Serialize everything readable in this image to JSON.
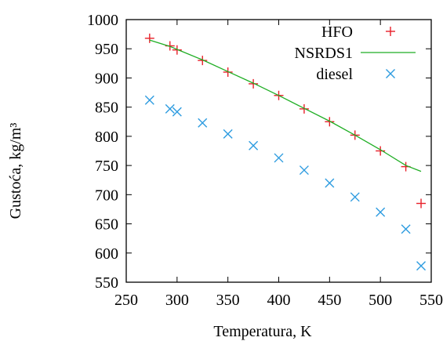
{
  "chart_data": {
    "type": "scatter",
    "xlabel": "Temperatura, K",
    "ylabel": "Gustoća, kg/m³",
    "xlim": [
      250,
      550
    ],
    "ylim": [
      550,
      1000
    ],
    "xticks": [
      250,
      300,
      350,
      400,
      450,
      500,
      550
    ],
    "yticks": [
      550,
      600,
      650,
      700,
      750,
      800,
      850,
      900,
      950,
      1000
    ],
    "grid": false,
    "legend_position": "top-right",
    "series": [
      {
        "name": "HFO",
        "kind": "scatter",
        "marker": "plus",
        "color": "#e8202a",
        "points": [
          [
            273,
            968
          ],
          [
            293,
            955
          ],
          [
            300,
            948
          ],
          [
            325,
            930
          ],
          [
            350,
            910
          ],
          [
            375,
            890
          ],
          [
            400,
            870
          ],
          [
            425,
            847
          ],
          [
            450,
            825
          ],
          [
            475,
            802
          ],
          [
            500,
            775
          ],
          [
            525,
            748
          ],
          [
            540,
            685
          ]
        ]
      },
      {
        "name": "NSRDS1",
        "kind": "line",
        "color": "#1fae24",
        "points": [
          [
            273,
            965
          ],
          [
            293,
            954
          ],
          [
            300,
            949
          ],
          [
            325,
            931
          ],
          [
            350,
            911
          ],
          [
            375,
            891
          ],
          [
            400,
            870
          ],
          [
            425,
            848
          ],
          [
            450,
            826
          ],
          [
            475,
            802
          ],
          [
            500,
            777
          ],
          [
            525,
            750
          ],
          [
            540,
            740
          ]
        ]
      },
      {
        "name": "diesel",
        "kind": "scatter",
        "marker": "cross",
        "color": "#2e9ce0",
        "points": [
          [
            273,
            862
          ],
          [
            293,
            847
          ],
          [
            300,
            842
          ],
          [
            325,
            823
          ],
          [
            350,
            804
          ],
          [
            375,
            784
          ],
          [
            400,
            763
          ],
          [
            425,
            742
          ],
          [
            450,
            720
          ],
          [
            475,
            696
          ],
          [
            500,
            670
          ],
          [
            525,
            641
          ],
          [
            540,
            578
          ]
        ]
      }
    ]
  }
}
